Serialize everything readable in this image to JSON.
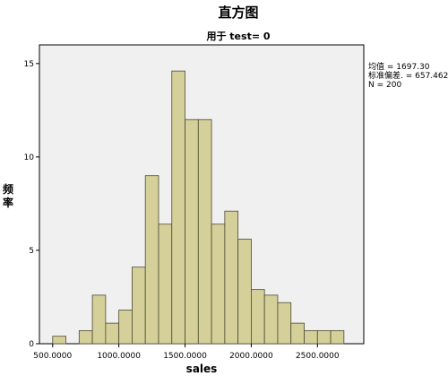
{
  "chart_data": {
    "type": "bar",
    "title": "直方图",
    "subtitle": "用于 test= 0",
    "xlabel": "sales",
    "ylabel": "频率",
    "bin_width": 100,
    "bins_start": [
      500,
      600,
      700,
      800,
      900,
      1000,
      1100,
      1200,
      1300,
      1400,
      1500,
      1600,
      1700,
      1800,
      1900,
      2000,
      2100,
      2200,
      2300,
      2400,
      2500,
      2600
    ],
    "values": [
      0.4,
      0,
      0.7,
      2.6,
      1.1,
      1.8,
      4.1,
      9.0,
      6.4,
      14.6,
      12.0,
      12.0,
      6.4,
      7.1,
      5.6,
      2.9,
      2.6,
      2.2,
      1.1,
      0.7,
      0.7,
      0.7
    ],
    "xlim": [
      400,
      2850
    ],
    "ylim": [
      0,
      16
    ],
    "x_ticks": [
      500,
      1000,
      1500,
      2000,
      2500
    ],
    "x_tick_labels": [
      "500.0000",
      "1000.0000",
      "1500.0000",
      "2000.0000",
      "2500.0000"
    ],
    "y_ticks": [
      0,
      5,
      10,
      15
    ],
    "y_tick_labels": [
      "0",
      "5",
      "10",
      "15"
    ],
    "stats": [
      "均值 = 1697.30",
      "标准偏差. = 657.462",
      "N = 200"
    ],
    "grid": false,
    "legend": "none",
    "colors": {
      "plot_background": "#f0f0f0",
      "bar_fill": "#d5d09a",
      "bar_stroke": "#4a4a30"
    }
  }
}
